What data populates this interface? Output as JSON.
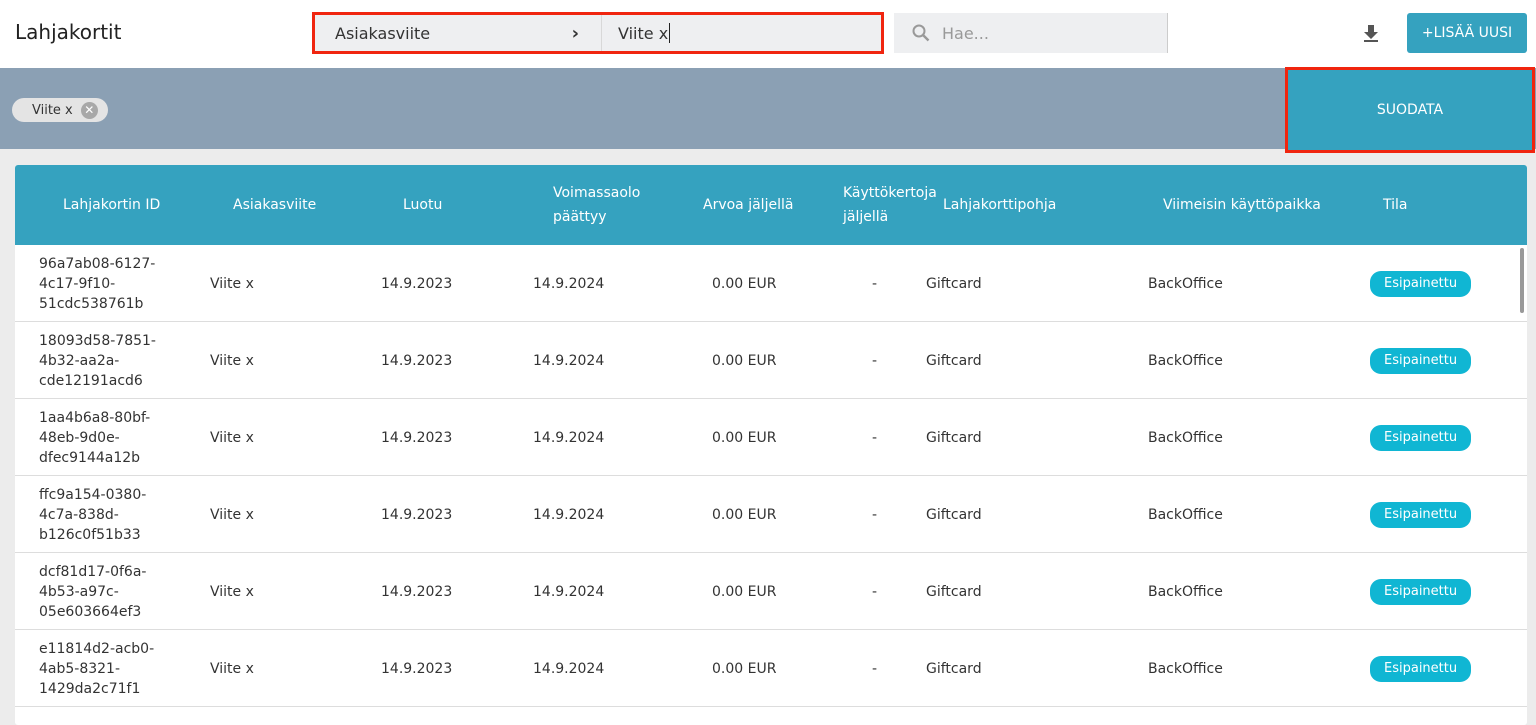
{
  "header": {
    "title": "Lahjakortit",
    "filter_field": "Asiakasviite",
    "filter_value": "Viite x",
    "search_placeholder": "Hae...",
    "add_label": "+LISÄÄ UUSI"
  },
  "filterbar": {
    "chip": "Viite x",
    "filter_label": "SUODATA"
  },
  "table": {
    "columns": [
      "Lahjakortin ID",
      "Asiakasviite",
      "Luotu",
      "Voimassaolo päättyy",
      "Arvoa jäljellä",
      "Käyttökertoja jäljellä",
      "Lahjakorttipohja",
      "Viimeisin käyttöpaikka",
      "Tila"
    ],
    "rows": [
      {
        "id": "96a7ab08-6127-4c17-9f10-51cdc538761b",
        "ref": "Viite x",
        "created": "14.9.2023",
        "expires": "14.9.2024",
        "value": "0.00 EUR",
        "uses": "-",
        "template": "Giftcard",
        "last": "BackOffice",
        "status": "Esipainettu"
      },
      {
        "id": "18093d58-7851-4b32-aa2a-cde12191acd6",
        "ref": "Viite x",
        "created": "14.9.2023",
        "expires": "14.9.2024",
        "value": "0.00 EUR",
        "uses": "-",
        "template": "Giftcard",
        "last": "BackOffice",
        "status": "Esipainettu"
      },
      {
        "id": "1aa4b6a8-80bf-48eb-9d0e-dfec9144a12b",
        "ref": "Viite x",
        "created": "14.9.2023",
        "expires": "14.9.2024",
        "value": "0.00 EUR",
        "uses": "-",
        "template": "Giftcard",
        "last": "BackOffice",
        "status": "Esipainettu"
      },
      {
        "id": "ffc9a154-0380-4c7a-838d-b126c0f51b33",
        "ref": "Viite x",
        "created": "14.9.2023",
        "expires": "14.9.2024",
        "value": "0.00 EUR",
        "uses": "-",
        "template": "Giftcard",
        "last": "BackOffice",
        "status": "Esipainettu"
      },
      {
        "id": "dcf81d17-0f6a-4b53-a97c-05e603664ef3",
        "ref": "Viite x",
        "created": "14.9.2023",
        "expires": "14.9.2024",
        "value": "0.00 EUR",
        "uses": "-",
        "template": "Giftcard",
        "last": "BackOffice",
        "status": "Esipainettu"
      },
      {
        "id": "e11814d2-acb0-4ab5-8321-1429da2c71f1",
        "ref": "Viite x",
        "created": "14.9.2023",
        "expires": "14.9.2024",
        "value": "0.00 EUR",
        "uses": "-",
        "template": "Giftcard",
        "last": "BackOffice",
        "status": "Esipainettu"
      }
    ]
  },
  "colors": {
    "accent": "#35a2bf",
    "filterbar": "#8ba0b4",
    "badge": "#10b6d3",
    "highlight": "#f0250f"
  }
}
